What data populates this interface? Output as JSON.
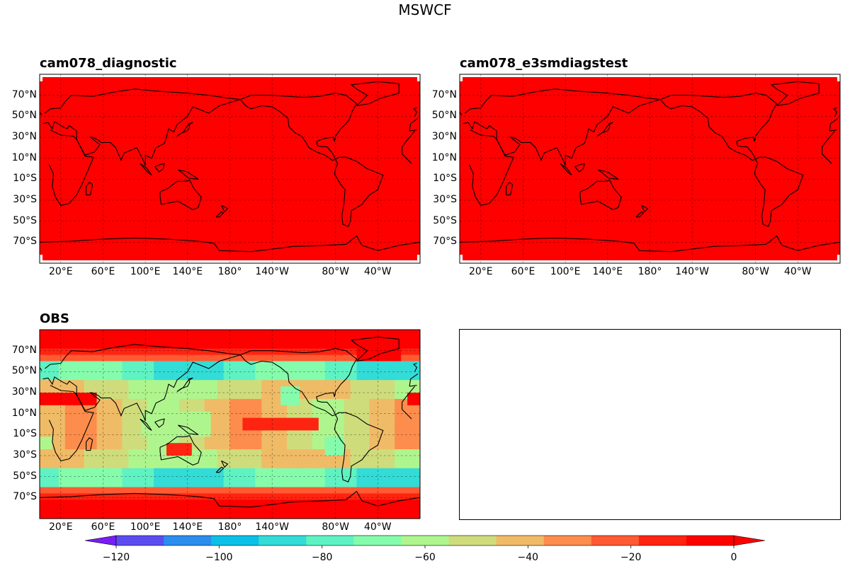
{
  "title": "MSWCF",
  "panels": [
    {
      "title": "cam078_diagnostic",
      "field": "uniform"
    },
    {
      "title": "cam078_e3smdiagstest",
      "field": "uniform"
    },
    {
      "title": "OBS",
      "field": "obs"
    }
  ],
  "lat_ticks": [
    "70°N",
    "50°N",
    "30°N",
    "10°N",
    "10°S",
    "30°S",
    "50°S",
    "70°S"
  ],
  "lat_values": [
    70,
    50,
    30,
    10,
    -10,
    -30,
    -50,
    -70
  ],
  "lon_ticks": [
    "20°E",
    "60°E",
    "100°E",
    "140°E",
    "180°",
    "140°W",
    "80°W",
    "40°W"
  ],
  "lon_values": [
    20,
    60,
    100,
    140,
    180,
    220,
    280,
    320
  ],
  "colorbar": {
    "levels": [
      -130,
      -120,
      -110,
      -100,
      -90,
      -80,
      -70,
      -60,
      -50,
      -40,
      -30,
      -20,
      -10,
      0
    ],
    "colors": [
      "#7a1cf8",
      "#5b4cf2",
      "#2b8ded",
      "#0bc0e6",
      "#33dcd6",
      "#5ff2c2",
      "#85fcab",
      "#aff58e",
      "#cfdc7c",
      "#f0bb66",
      "#fd8d4c",
      "#ff5a32",
      "#ff2411",
      "#ff0000"
    ],
    "tick_labels": [
      "−120",
      "−100",
      "−80",
      "−60",
      "−40",
      "−20",
      "0"
    ],
    "tick_values": [
      -120,
      -100,
      -80,
      -60,
      -40,
      -20,
      0
    ]
  },
  "chart_data": [
    {
      "type": "heatmap",
      "title": "cam078_diagnostic",
      "value_range": [
        -130,
        0
      ],
      "note_value": "uniform field near 0 (all red)"
    },
    {
      "type": "heatmap",
      "title": "cam078_e3smdiagstest",
      "value_range": [
        -130,
        0
      ],
      "note_value": "uniform field near 0 (all red)"
    },
    {
      "type": "heatmap",
      "title": "OBS",
      "value_range": [
        -130,
        0
      ]
    }
  ]
}
